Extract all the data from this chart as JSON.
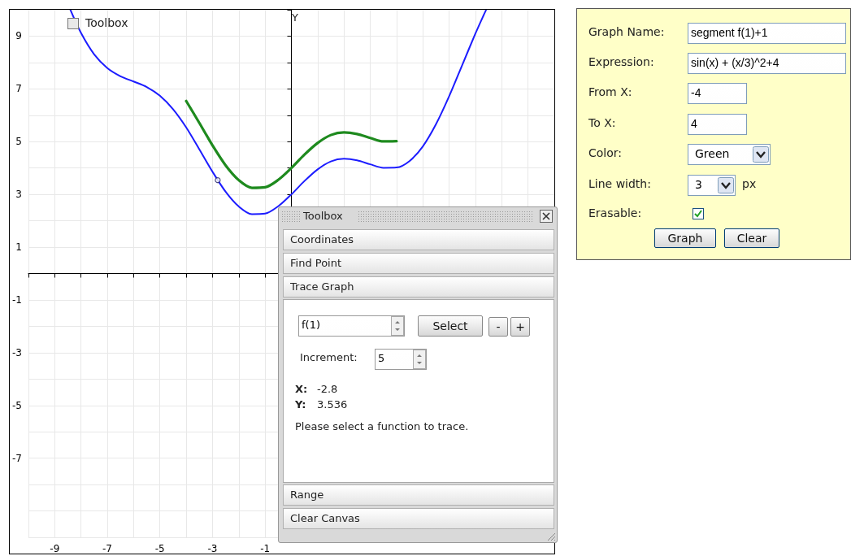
{
  "chart_data": {
    "type": "line",
    "ylabel": "Y",
    "xlim": [
      -10,
      10
    ],
    "ylim": [
      -10,
      10
    ],
    "xticks": [
      {
        "value": -10,
        "label": null
      },
      {
        "value": -9,
        "label": "-9"
      },
      {
        "value": -8,
        "label": null
      },
      {
        "value": -7,
        "label": "-7"
      },
      {
        "value": -6,
        "label": null
      },
      {
        "value": -5,
        "label": "-5"
      },
      {
        "value": -4,
        "label": null
      },
      {
        "value": -3,
        "label": "-3"
      },
      {
        "value": -2,
        "label": null
      },
      {
        "value": -1,
        "label": "-1"
      },
      {
        "value": 1,
        "label": null
      },
      {
        "value": 2,
        "label": null
      },
      {
        "value": 3,
        "label": null
      },
      {
        "value": 4,
        "label": null
      },
      {
        "value": 5,
        "label": null
      },
      {
        "value": 6,
        "label": null
      },
      {
        "value": 7,
        "label": null
      },
      {
        "value": 8,
        "label": null
      },
      {
        "value": 9,
        "label": null
      },
      {
        "value": 10,
        "label": null
      }
    ],
    "yticks": [
      {
        "value": -10,
        "label": null
      },
      {
        "value": -9,
        "label": null
      },
      {
        "value": -8,
        "label": null
      },
      {
        "value": -7,
        "label": "-7"
      },
      {
        "value": -6,
        "label": null
      },
      {
        "value": -5,
        "label": "-5"
      },
      {
        "value": -4,
        "label": null
      },
      {
        "value": -3,
        "label": "-3"
      },
      {
        "value": -2,
        "label": null
      },
      {
        "value": -1,
        "label": "-1"
      },
      {
        "value": 1,
        "label": "1"
      },
      {
        "value": 2,
        "label": null
      },
      {
        "value": 3,
        "label": "3"
      },
      {
        "value": 4,
        "label": null
      },
      {
        "value": 5,
        "label": "5"
      },
      {
        "value": 6,
        "label": null
      },
      {
        "value": 7,
        "label": "7"
      },
      {
        "value": 8,
        "label": null
      },
      {
        "value": 9,
        "label": "9"
      },
      {
        "value": 10,
        "label": null
      }
    ],
    "grid": true,
    "marker": "none",
    "series": [
      {
        "color": "#1c1cff",
        "x": [
          -8.4,
          -8,
          -7.5,
          -7,
          -6.5,
          -6,
          -5.5,
          -5,
          -4.5,
          -4,
          -3.5,
          -3,
          -2.5,
          -2,
          -1.5,
          -1,
          -0.5,
          0,
          0.5,
          1,
          1.5,
          2,
          2.5,
          3,
          3.5,
          4,
          4.5,
          5,
          5.5,
          6,
          6.5,
          7,
          7.3,
          7.4
        ],
        "values": [
          9.99,
          9.12,
          8.31,
          7.79,
          7.48,
          7.28,
          7.07,
          6.74,
          6.23,
          5.54,
          4.71,
          3.86,
          3.1,
          2.54,
          2.25,
          2.27,
          2.55,
          3,
          3.51,
          3.95,
          4.25,
          4.35,
          4.29,
          4.14,
          4.01,
          4.02,
          4.27,
          4.82,
          5.66,
          6.72,
          7.91,
          9.1,
          9.77,
          9.98
        ]
      },
      {
        "color": "#1e8a1e",
        "x": [
          -4,
          -3.5,
          -3,
          -2.5,
          -2,
          -1.5,
          -1,
          -0.5,
          0,
          0.5,
          1,
          1.5,
          2,
          2.5,
          3,
          3.5,
          4
        ],
        "values": [
          6.54,
          5.71,
          4.86,
          4.1,
          3.54,
          3.25,
          3.27,
          3.55,
          4,
          4.51,
          4.95,
          5.25,
          5.35,
          5.29,
          5.14,
          5.01,
          5.02
        ]
      },
      {
        "type": "scatter",
        "marker": "circle",
        "color": "#1a1a60",
        "x": [
          -2.8
        ],
        "values": [
          3.54
        ]
      }
    ],
    "annotations": [
      "Toolbox",
      "Toolbox",
      "Coordinates",
      "Find Point",
      "Trace Graph",
      "f(1)",
      "Select",
      "-",
      "+",
      "Increment:",
      "5",
      "X:",
      "-2.8",
      "Y:",
      "3.536",
      "Please select a function to trace.",
      "Range",
      "Clear Canvas",
      "Graph Name:",
      "segment f(1)+1",
      "Expression:",
      "sin(x) + (x/3)^2+4",
      "From X:",
      "-4",
      "To X:",
      "4",
      "Color:",
      "Green",
      "Line width:",
      "3",
      "px",
      "Erasable:",
      "Graph",
      "Clear"
    ]
  }
}
